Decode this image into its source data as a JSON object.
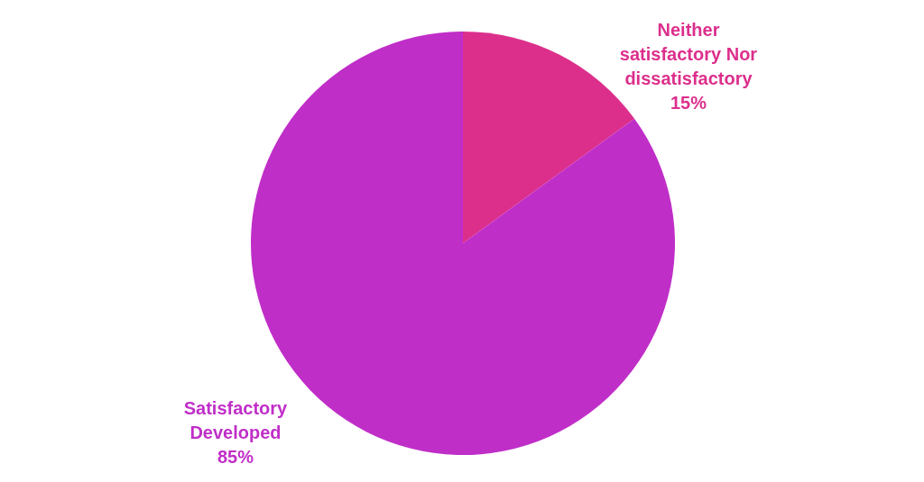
{
  "chart_data": {
    "type": "pie",
    "categories": [
      "Neither satisfactory Nor dissatisfactory",
      "Satisfactory Developed"
    ],
    "values": [
      15,
      85
    ],
    "colors": [
      "#dc2f8c",
      "#c02ec8"
    ],
    "value_labels": [
      "15%",
      "85%"
    ],
    "legend": false
  }
}
